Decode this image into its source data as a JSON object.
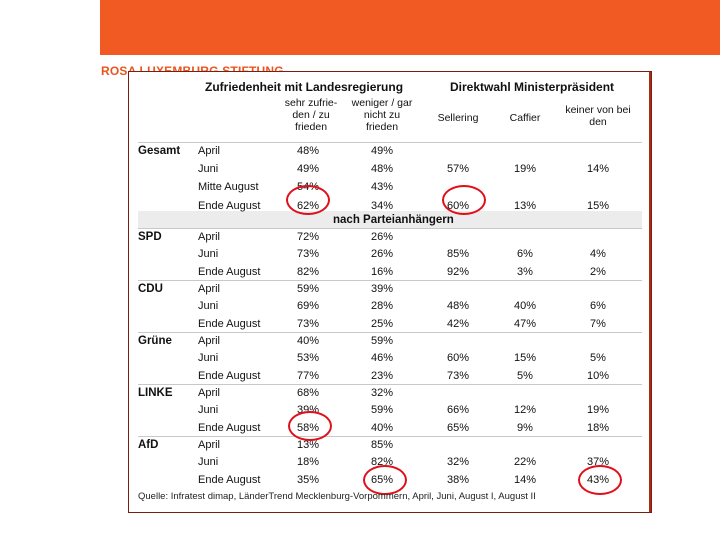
{
  "brand": "ROSA LUXEMBURG STIFTUNG",
  "headers": {
    "satisfaction": "Zufriedenheit mit Landesregierung",
    "direct_vote": "Direktwahl Ministerpräsident",
    "col_satisfied": "sehr zufrie-den / zu frieden",
    "col_unsatisfied": "weniger / gar nicht zu frieden",
    "col_sellering": "Sellering",
    "col_caffier": "Caffier",
    "col_none": "keiner von bei den",
    "party_supporters": "nach Parteianhängern"
  },
  "groups": [
    {
      "name": "Gesamt",
      "rows": [
        {
          "label": "April",
          "sat": "48%",
          "unsat": "49%",
          "sel": "",
          "caf": "",
          "none": ""
        },
        {
          "label": "Juni",
          "sat": "49%",
          "unsat": "48%",
          "sel": "57%",
          "caf": "19%",
          "none": "14%"
        },
        {
          "label": "Mitte August",
          "sat": "54%",
          "unsat": "43%",
          "sel": "",
          "caf": "",
          "none": ""
        },
        {
          "label": "Ende August",
          "sat": "62%",
          "unsat": "34%",
          "sel": "60%",
          "caf": "13%",
          "none": "15%"
        }
      ]
    },
    {
      "name": "SPD",
      "rows": [
        {
          "label": "April",
          "sat": "72%",
          "unsat": "26%",
          "sel": "",
          "caf": "",
          "none": ""
        },
        {
          "label": "Juni",
          "sat": "73%",
          "unsat": "26%",
          "sel": "85%",
          "caf": "6%",
          "none": "4%"
        },
        {
          "label": "Ende August",
          "sat": "82%",
          "unsat": "16%",
          "sel": "92%",
          "caf": "3%",
          "none": "2%"
        }
      ]
    },
    {
      "name": "CDU",
      "rows": [
        {
          "label": "April",
          "sat": "59%",
          "unsat": "39%",
          "sel": "",
          "caf": "",
          "none": ""
        },
        {
          "label": "Juni",
          "sat": "69%",
          "unsat": "28%",
          "sel": "48%",
          "caf": "40%",
          "none": "6%"
        },
        {
          "label": "Ende August",
          "sat": "73%",
          "unsat": "25%",
          "sel": "42%",
          "caf": "47%",
          "none": "7%"
        }
      ]
    },
    {
      "name": "Grüne",
      "rows": [
        {
          "label": "April",
          "sat": "40%",
          "unsat": "59%",
          "sel": "",
          "caf": "",
          "none": ""
        },
        {
          "label": "Juni",
          "sat": "53%",
          "unsat": "46%",
          "sel": "60%",
          "caf": "15%",
          "none": "5%"
        },
        {
          "label": "Ende August",
          "sat": "77%",
          "unsat": "23%",
          "sel": "73%",
          "caf": "5%",
          "none": "10%"
        }
      ]
    },
    {
      "name": "LINKE",
      "rows": [
        {
          "label": "April",
          "sat": "68%",
          "unsat": "32%",
          "sel": "",
          "caf": "",
          "none": ""
        },
        {
          "label": "Juni",
          "sat": "39%",
          "unsat": "59%",
          "sel": "66%",
          "caf": "12%",
          "none": "19%"
        },
        {
          "label": "Ende August",
          "sat": "58%",
          "unsat": "40%",
          "sel": "65%",
          "caf": "9%",
          "none": "18%"
        }
      ]
    },
    {
      "name": "AfD",
      "rows": [
        {
          "label": "April",
          "sat": "13%",
          "unsat": "85%",
          "sel": "",
          "caf": "",
          "none": ""
        },
        {
          "label": "Juni",
          "sat": "18%",
          "unsat": "82%",
          "sel": "32%",
          "caf": "22%",
          "none": "37%"
        },
        {
          "label": "Ende August",
          "sat": "35%",
          "unsat": "65%",
          "sel": "38%",
          "caf": "14%",
          "none": "43%"
        }
      ]
    }
  ],
  "source": "Quelle: Infratest dimap, LänderTrend Mecklenburg-Vorpommern, April, Juni, August I, August II",
  "colors": {
    "banner": "#f15a22",
    "brand_text": "#e8551f",
    "highlight": "#e0101a"
  }
}
